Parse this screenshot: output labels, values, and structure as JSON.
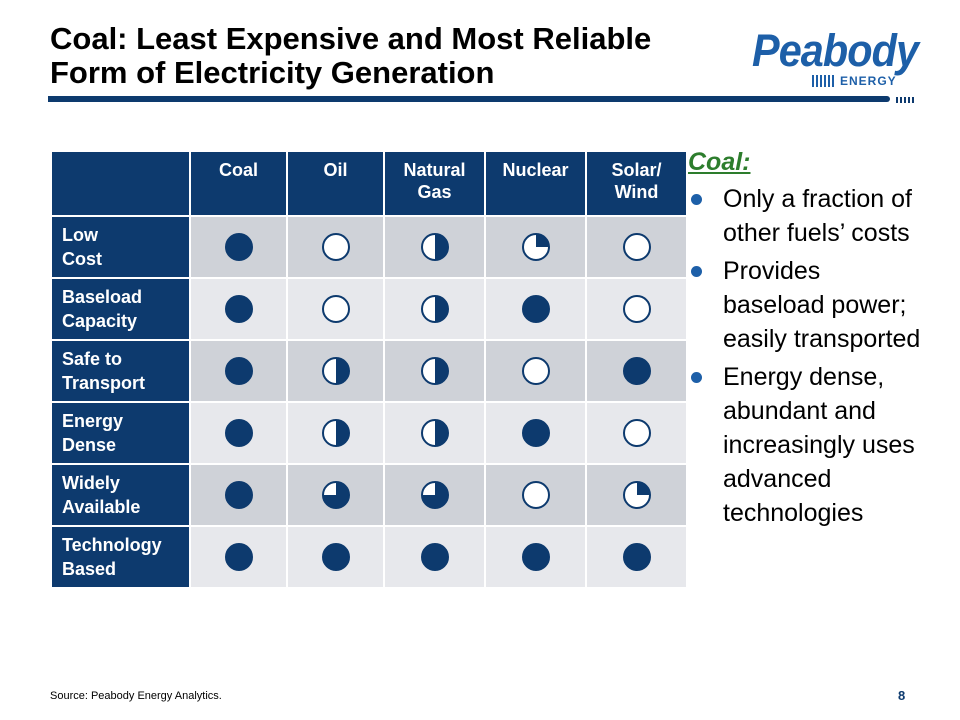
{
  "slide": {
    "title_line1": "Coal: Least Expensive and Most Reliable",
    "title_line2": "Form of Electricity Generation",
    "logo_text": "Peabody",
    "logo_subtext": "ENERGY",
    "brand_color": "#0d3a6e",
    "page_number": "8",
    "source": "Source: Peabody Energy Analytics."
  },
  "table": {
    "columns": [
      "Coal",
      "Oil",
      "Natural Gas",
      "Nuclear",
      "Solar/ Wind"
    ],
    "rows": [
      {
        "label": "Low Cost",
        "ratings": [
          1,
          0,
          0.5,
          0.25,
          0
        ]
      },
      {
        "label": "Baseload Capacity",
        "ratings": [
          1,
          0,
          0.5,
          1,
          0
        ]
      },
      {
        "label": "Safe to Transport",
        "ratings": [
          1,
          0.5,
          0.5,
          0,
          1
        ]
      },
      {
        "label": "Energy Dense",
        "ratings": [
          1,
          0.5,
          0.5,
          1,
          0
        ]
      },
      {
        "label": "Widely Available",
        "ratings": [
          1,
          0.75,
          0.75,
          0,
          0.25
        ]
      },
      {
        "label": "Technology Based",
        "ratings": [
          1,
          1,
          1,
          1,
          1
        ]
      }
    ],
    "legend_note": "Harvey ball ratings (fraction filled)"
  },
  "sidebar": {
    "heading": "Coal:",
    "bullets": [
      "Only a fraction of other fuels’ costs",
      "Provides baseload power; easily transported",
      "Energy dense, abundant and increasingly uses advanced technologies"
    ]
  }
}
